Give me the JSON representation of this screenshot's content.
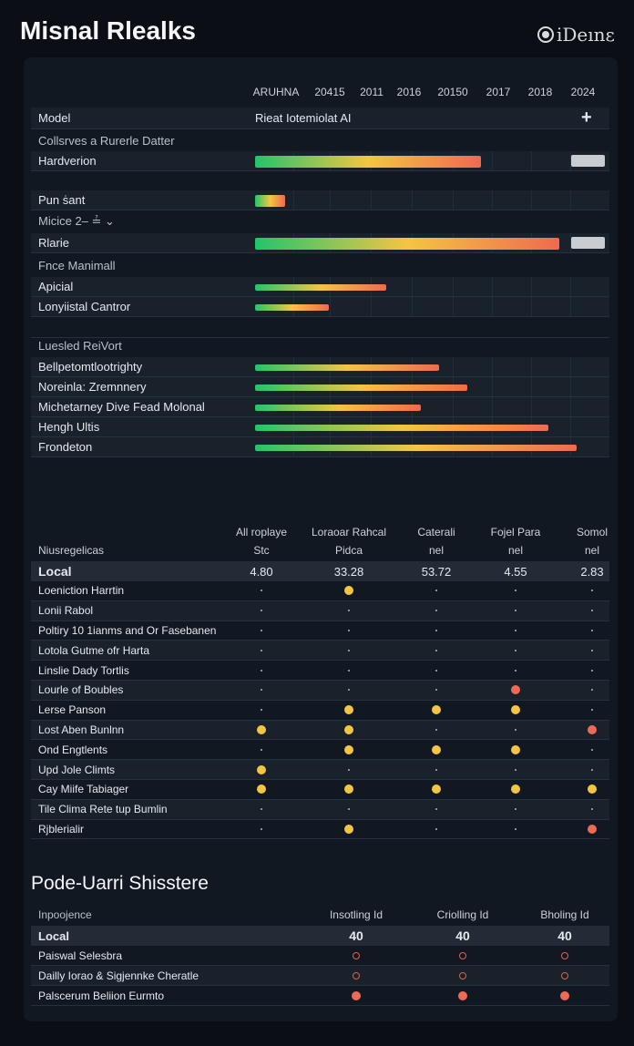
{
  "header": {
    "title": "Misnal Rlealks",
    "logo_text": "iDeınε"
  },
  "timeline": {
    "columns": [
      "ARUHNA",
      "20415",
      "2011",
      "2016",
      "20150",
      "2017",
      "2018",
      "2024"
    ],
    "model_row": {
      "label": "Model",
      "value": "Rieat Iotemiolat AI",
      "add_icon": "plus-icon"
    },
    "groups": [
      {
        "label": "Collsrves a Rurerle Datter",
        "rows": [
          {
            "label": "Hardverion",
            "progress_pct": 64,
            "badge": true
          }
        ]
      },
      {
        "label": "",
        "rows": [
          {
            "label": "Pun ṡant",
            "progress_pct": 8.5,
            "badge": false
          }
        ]
      },
      {
        "label": "Micice 2– ≟ ⌄",
        "rows": [
          {
            "label": "Rlarie",
            "progress_pct": 86,
            "badge": true
          }
        ]
      },
      {
        "label": "Fnce Manimall",
        "rows": [
          {
            "label": "Apicial",
            "progress_pct": 37
          },
          {
            "label": "Lonyiistal Cantror",
            "progress_pct": 21
          }
        ]
      },
      {
        "label": "Luesled ReiVort",
        "rows": [
          {
            "label": "Bellpetomtlootrighty",
            "progress_pct": 52
          },
          {
            "label": "Noreinla: Zremnnery",
            "progress_pct": 60
          },
          {
            "label": "Michetarney Dive Fead Molonal",
            "progress_pct": 47
          },
          {
            "label": "Hengh Ultis",
            "progress_pct": 83
          },
          {
            "label": "Frondeton",
            "progress_pct": 91
          }
        ]
      }
    ]
  },
  "matrix": {
    "row_header": "Niusregelicas",
    "columns": [
      [
        "All roplaye",
        "Stc"
      ],
      [
        "Loraoar Rahcal",
        "Pidca"
      ],
      [
        "Caterali",
        "nel"
      ],
      [
        "Fojel Para",
        "nel"
      ],
      [
        "Somol",
        "nel"
      ]
    ],
    "summary": {
      "label": "Local",
      "values": [
        "4.80",
        "33.28",
        "53.72",
        "4.55",
        "2.83"
      ]
    },
    "rows": [
      {
        "label": "Loeniction Harrtin",
        "marks": [
          "-",
          "yellow",
          "-",
          "-",
          "-"
        ]
      },
      {
        "label": "Lonii Rabol",
        "marks": [
          "-",
          "-",
          "-",
          "-",
          "-"
        ]
      },
      {
        "label": "Poltiry 10 1ianms and Or Fasebanen",
        "marks": [
          "-",
          "-",
          "-",
          "-",
          "-"
        ]
      },
      {
        "label": "Lotola Gutme ofr Harta",
        "marks": [
          "-",
          "-",
          "-",
          "-",
          "-"
        ]
      },
      {
        "label": "Linslie Dady Tortlis",
        "marks": [
          "-",
          "-",
          "-",
          "-",
          "-"
        ]
      },
      {
        "label": "Lourle of Boubles",
        "marks": [
          "-",
          "-",
          "-",
          "red",
          "-"
        ]
      },
      {
        "label": "Lerse Panson",
        "marks": [
          "-",
          "yellow",
          "yellow",
          "yellow",
          "-"
        ]
      },
      {
        "label": "Lost Aben Bunlnn",
        "marks": [
          "yellow",
          "yellow",
          "-",
          "-",
          "red"
        ]
      },
      {
        "label": "Ond Engtlents",
        "marks": [
          "-",
          "yellow",
          "yellow",
          "yellow",
          "-"
        ]
      },
      {
        "label": "Upd Jole Climts",
        "marks": [
          "yellow",
          "-",
          "-",
          "-",
          "-"
        ]
      },
      {
        "label": "Cay Miife Tabiager",
        "marks": [
          "yellow",
          "yellow",
          "yellow",
          "yellow",
          "yellow"
        ]
      },
      {
        "label": "Tile Clima Rete tup Bumlin",
        "marks": [
          "-",
          "-",
          "-",
          "-",
          "-"
        ]
      },
      {
        "label": "Rjblerialir",
        "marks": [
          "-",
          "yellow",
          "-",
          "-",
          "red"
        ]
      }
    ]
  },
  "shisstere": {
    "title": "Pode-Uarri Shisstere",
    "row_header": "Inpoojence",
    "columns": [
      "Insotling Id",
      "Criolling Id",
      "Bholing Id"
    ],
    "summary": {
      "label": "Local",
      "values": [
        "40",
        "40",
        "40"
      ]
    },
    "rows": [
      {
        "label": "Paiswal Selesbra",
        "marks": [
          "ring",
          "ring",
          "ring"
        ]
      },
      {
        "label": "Dailly Iorao & Sigjennke Cheratle",
        "marks": [
          "ring",
          "ring",
          "ring"
        ]
      },
      {
        "label": "Palscerum Beliion Eurmto",
        "marks": [
          "red",
          "red",
          "red"
        ]
      }
    ]
  },
  "colors": {
    "yellow": "#f4c542",
    "red": "#ee6a55",
    "green": "#22c56b",
    "background": "#0b0f15",
    "panel": "#121821"
  }
}
